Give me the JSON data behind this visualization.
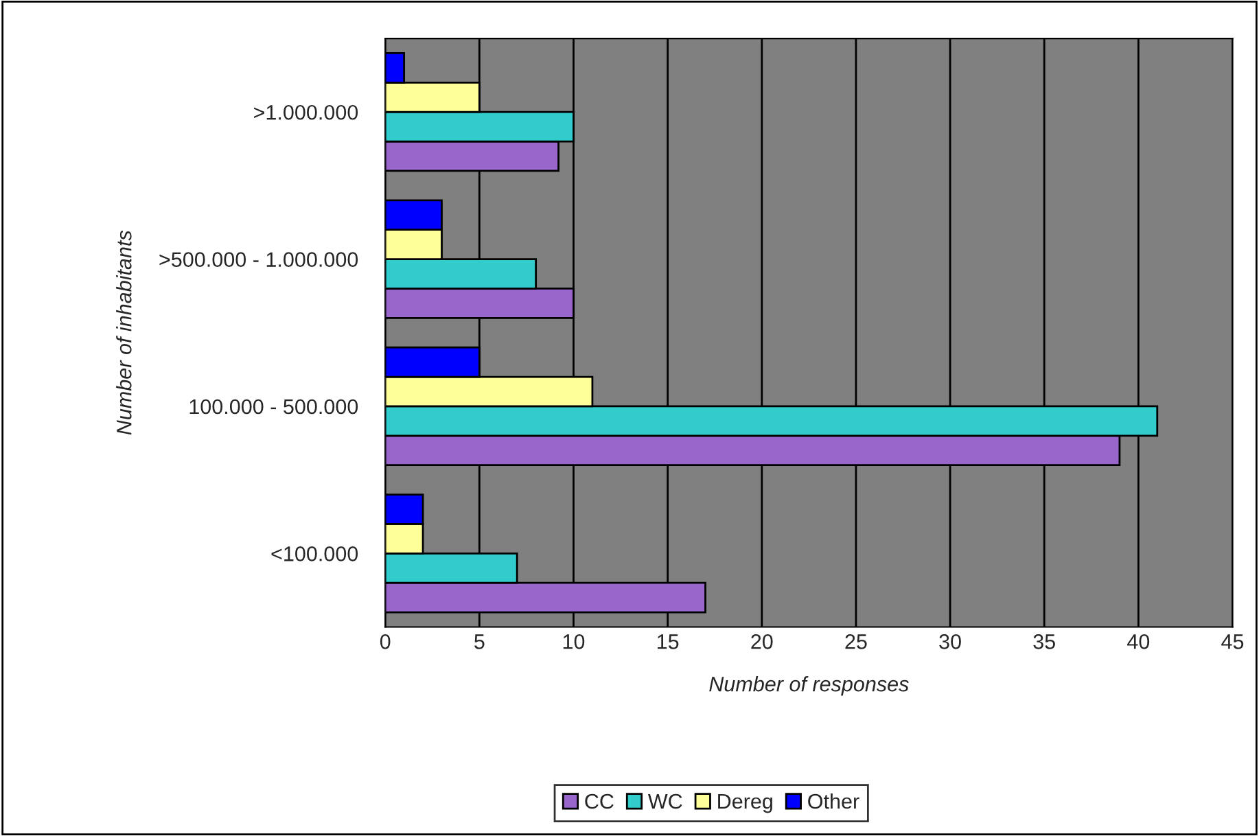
{
  "chart_data": {
    "type": "bar",
    "orientation": "horizontal",
    "categories": [
      ">1.000.000",
      ">500.000 - 1.000.000",
      "100.000 - 500.000",
      "<100.000"
    ],
    "series": [
      {
        "name": "CC",
        "color": "#9966cc",
        "values": [
          9.2,
          10,
          39,
          17
        ]
      },
      {
        "name": "WC",
        "color": "#33cccc",
        "values": [
          10,
          8,
          41,
          7
        ]
      },
      {
        "name": "Dereg",
        "color": "#ffff99",
        "values": [
          5,
          3,
          11,
          2
        ]
      },
      {
        "name": "Other",
        "color": "#0000ff",
        "values": [
          1,
          3,
          5,
          2
        ]
      }
    ],
    "xlim": [
      0,
      45
    ],
    "xticks": [
      0,
      5,
      10,
      15,
      20,
      25,
      30,
      35,
      40,
      45
    ],
    "xlabel": "Number of responses",
    "ylabel": "Number of inhabitants",
    "grid": "x",
    "legend": "bottom"
  }
}
